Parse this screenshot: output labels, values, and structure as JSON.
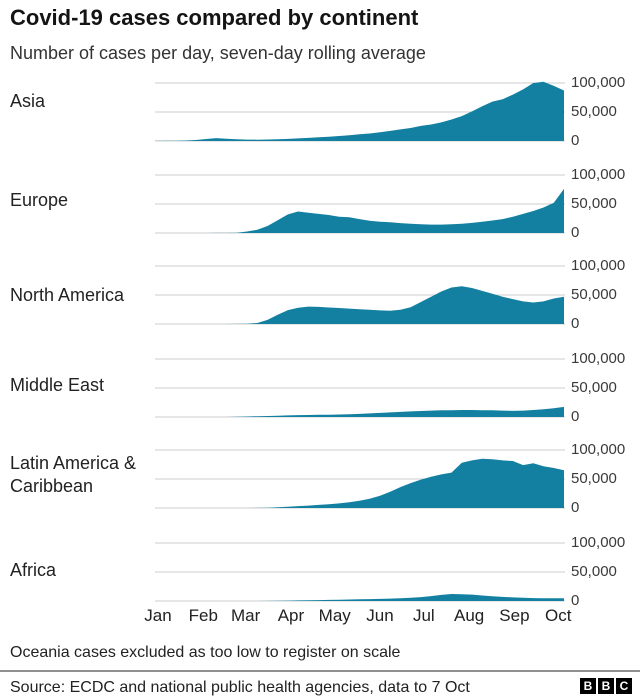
{
  "header": {
    "title": "Covid-19 cases compared by continent",
    "subtitle": "Number of cases per day, seven-day rolling average"
  },
  "axis": {
    "y_ticks": [
      "100,000",
      "50,000",
      "0"
    ],
    "x_ticks": [
      {
        "label": "Jan",
        "day": 0
      },
      {
        "label": "Feb",
        "day": 31
      },
      {
        "label": "Mar",
        "day": 60
      },
      {
        "label": "Apr",
        "day": 91
      },
      {
        "label": "May",
        "day": 121
      },
      {
        "label": "Jun",
        "day": 152
      },
      {
        "label": "Jul",
        "day": 182
      },
      {
        "label": "Aug",
        "day": 213
      },
      {
        "label": "Sep",
        "day": 244
      },
      {
        "label": "Oct",
        "day": 274
      }
    ]
  },
  "colors": {
    "fill": "#1380A1",
    "gridline": "#cccccc"
  },
  "chart_data": {
    "type": "area",
    "title": "Covid-19 cases compared by continent",
    "subtitle": "Number of cases per day, seven-day rolling average",
    "ylabel": "Cases per day (seven-day rolling average)",
    "ylim": [
      0,
      100000
    ],
    "x_range": [
      "1 Jan",
      "7 Oct"
    ],
    "x_days": [
      0,
      7,
      14,
      21,
      28,
      35,
      42,
      49,
      56,
      63,
      70,
      77,
      84,
      91,
      98,
      105,
      112,
      119,
      126,
      133,
      140,
      147,
      154,
      161,
      168,
      175,
      182,
      189,
      196,
      203,
      210,
      217,
      224,
      231,
      238,
      245,
      252,
      259,
      266,
      273,
      280
    ],
    "series": [
      {
        "name": "Asia",
        "values": [
          100,
          300,
          500,
          800,
          1800,
          3500,
          5000,
          4000,
          2900,
          2400,
          2300,
          2500,
          3000,
          3600,
          4400,
          5400,
          6400,
          7400,
          8600,
          10000,
          11500,
          13000,
          15000,
          17500,
          20000,
          22500,
          26000,
          28500,
          32000,
          37000,
          43000,
          51000,
          60000,
          68000,
          72000,
          80000,
          89000,
          100000,
          102000,
          95000,
          87000
        ]
      },
      {
        "name": "Europe",
        "values": [
          0,
          0,
          0,
          0,
          0,
          0,
          100,
          200,
          500,
          2500,
          5500,
          12000,
          22000,
          32000,
          37000,
          35000,
          33000,
          31000,
          28000,
          27000,
          24000,
          21000,
          19500,
          18500,
          17000,
          16000,
          15000,
          14500,
          14500,
          15000,
          16000,
          17500,
          19500,
          21500,
          24000,
          28000,
          33000,
          38000,
          44000,
          52000,
          76000
        ]
      },
      {
        "name": "North America",
        "values": [
          0,
          0,
          0,
          0,
          0,
          0,
          0,
          0,
          100,
          600,
          1800,
          7000,
          16000,
          24000,
          28000,
          30000,
          29500,
          28500,
          27500,
          26500,
          25500,
          24500,
          23500,
          23000,
          24500,
          29000,
          38000,
          47000,
          56000,
          63000,
          65000,
          62000,
          57000,
          52000,
          47000,
          43000,
          39000,
          37000,
          39000,
          44000,
          47000
        ]
      },
      {
        "name": "Middle East",
        "values": [
          0,
          0,
          0,
          0,
          0,
          0,
          0,
          0,
          300,
          800,
          1300,
          1800,
          2300,
          2800,
          3200,
          3500,
          3800,
          4000,
          4300,
          4800,
          5400,
          6200,
          7000,
          8000,
          8800,
          9600,
          10400,
          11000,
          11500,
          11800,
          12000,
          12000,
          11800,
          11500,
          11000,
          10500,
          11000,
          12000,
          13500,
          15000,
          17500
        ]
      },
      {
        "name": "Latin America & Caribbean",
        "values": [
          0,
          0,
          0,
          0,
          0,
          0,
          0,
          0,
          0,
          0,
          200,
          500,
          1200,
          2200,
          3200,
          4200,
          5300,
          6500,
          8000,
          10000,
          12500,
          16000,
          21000,
          28000,
          36000,
          43000,
          49000,
          54000,
          58000,
          61000,
          78000,
          82000,
          85000,
          84000,
          82000,
          81000,
          74000,
          77000,
          72000,
          69000,
          65000
        ]
      },
      {
        "name": "Africa",
        "values": [
          0,
          0,
          0,
          0,
          0,
          0,
          0,
          0,
          0,
          0,
          0,
          200,
          400,
          700,
          1000,
          1300,
          1600,
          1900,
          2200,
          2600,
          2900,
          3200,
          3600,
          4200,
          4800,
          5500,
          6800,
          8500,
          10500,
          12000,
          11800,
          11000,
          9500,
          8200,
          7000,
          6200,
          5500,
          5000,
          4800,
          4700,
          4800
        ]
      }
    ],
    "legend": "none",
    "grid": "horizontal"
  },
  "footer": {
    "note": "Oceania cases excluded as too low to register on scale",
    "source": "Source: ECDC and national public health agencies, data to 7 Oct",
    "logo_letters": [
      "B",
      "B",
      "C"
    ]
  }
}
